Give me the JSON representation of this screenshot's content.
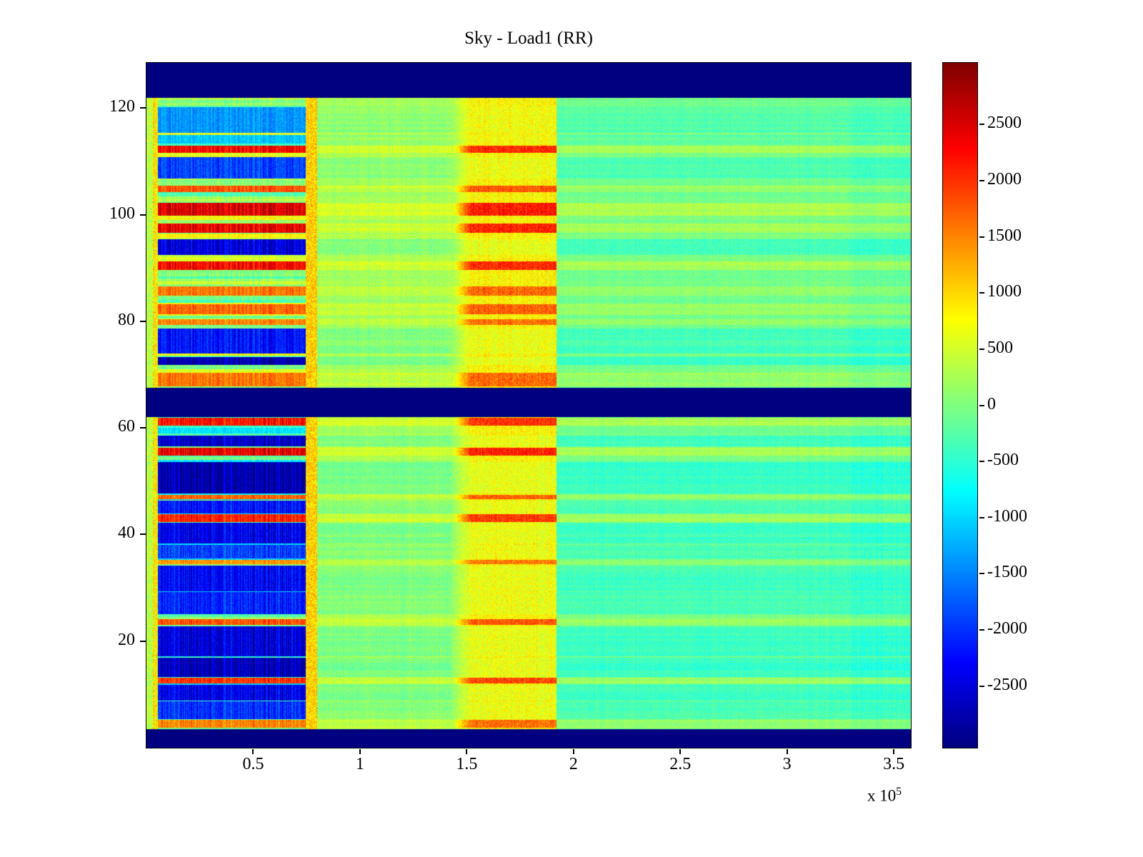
{
  "figure": {
    "background": "#ffffff"
  },
  "chart_data": {
    "type": "heatmap",
    "title": "Sky - Load1 (RR)",
    "colormap": "jet",
    "x_axis": {
      "range": [
        0,
        358000
      ],
      "ticks": [
        50000,
        100000,
        150000,
        200000,
        250000,
        300000,
        350000
      ],
      "tick_labels": [
        "0.5",
        "1",
        "1.5",
        "2",
        "2.5",
        "3",
        "3.5"
      ],
      "offset_text": {
        "mantissa": "x 10",
        "exponent": "5"
      }
    },
    "y_axis": {
      "range": [
        0,
        128.5
      ],
      "ticks": [
        20,
        40,
        60,
        80,
        100,
        120
      ],
      "tick_labels": [
        "20",
        "40",
        "60",
        "80",
        "100",
        "120"
      ]
    },
    "colorbar": {
      "range": [
        -3050,
        3050
      ],
      "ticks": [
        2500,
        2000,
        1500,
        1000,
        500,
        0,
        -500,
        -1000,
        -1500,
        -2000,
        -2500
      ],
      "tick_labels": [
        "2500",
        "2000",
        "1500",
        "1000",
        "500",
        "0",
        "-500",
        "-1000",
        "-1500",
        "-2000",
        "-2500"
      ]
    },
    "render": {
      "seed": 42,
      "solid_band_value": -3050,
      "solid_bands_y": [
        [
          0,
          3.5
        ],
        [
          62,
          67.5
        ],
        [
          122,
          128.5
        ]
      ],
      "blocks_y": {
        "lower": [
          3.5,
          62
        ],
        "upper": [
          67.5,
          122
        ]
      },
      "block_base_value": {
        "lower": -520,
        "upper": 240
      },
      "x_regions": {
        "left_edge": [
          0,
          3000
        ],
        "left_border": [
          3000,
          5500
        ],
        "striped_block": [
          5500,
          74500
        ],
        "right_border": [
          74500,
          80000
        ],
        "calm_warm": [
          80000,
          143000
        ],
        "warm_band": [
          143000,
          192000
        ],
        "calm_cool": [
          192000,
          358000
        ]
      },
      "stripes_warm": [
        [
          111.6,
          113.0,
          2300
        ],
        [
          104.3,
          105.4,
          1800
        ],
        [
          99.8,
          102.2,
          2500
        ],
        [
          96.6,
          98.4,
          2400
        ],
        [
          89.7,
          91.2,
          2300
        ],
        [
          84.8,
          86.6,
          1600
        ],
        [
          81.4,
          83.2,
          1700
        ],
        [
          79.3,
          80.4,
          1500
        ],
        [
          67.8,
          70.3,
          1600
        ],
        [
          60.4,
          61.9,
          2200
        ],
        [
          54.8,
          56.3,
          2400
        ],
        [
          46.6,
          47.5,
          1700
        ],
        [
          42.4,
          43.8,
          2100
        ],
        [
          34.4,
          35.3,
          1400
        ],
        [
          23.0,
          24.1,
          1800
        ],
        [
          12.0,
          13.1,
          2000
        ],
        [
          3.8,
          5.2,
          1500
        ]
      ],
      "stripes_cool": [
        [
          115.4,
          120.2,
          -1400
        ],
        [
          113.4,
          115.0,
          -1100
        ],
        [
          106.8,
          110.8,
          -1900
        ],
        [
          92.4,
          95.4,
          -2500
        ],
        [
          74.0,
          78.6,
          -2200
        ],
        [
          71.8,
          73.3,
          -2800
        ],
        [
          56.5,
          58.6,
          -2600
        ],
        [
          47.7,
          53.6,
          -2800
        ],
        [
          43.9,
          46.4,
          -2200
        ],
        [
          38.3,
          42.2,
          -2400
        ],
        [
          35.5,
          38.1,
          -1900
        ],
        [
          29.4,
          34.2,
          -2300
        ],
        [
          25.0,
          29.2,
          -2100
        ],
        [
          17.2,
          22.8,
          -2500
        ],
        [
          13.3,
          16.9,
          -2700
        ],
        [
          8.9,
          11.8,
          -2400
        ],
        [
          5.4,
          8.7,
          -2000
        ]
      ]
    }
  }
}
